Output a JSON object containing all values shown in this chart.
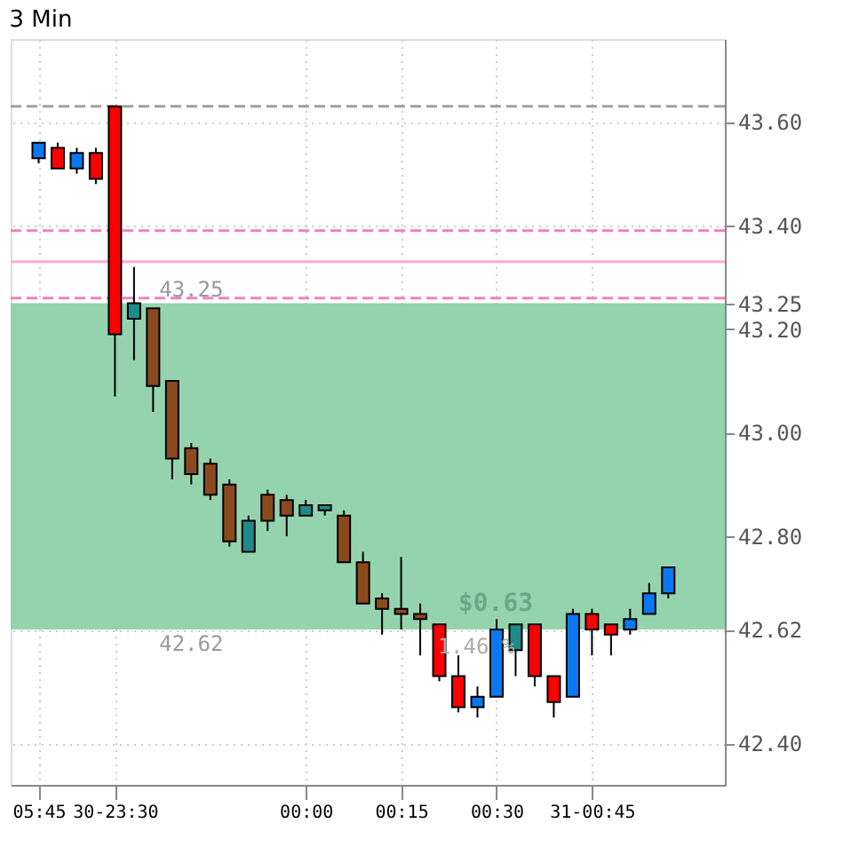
{
  "chart_data": {
    "type": "candlestick",
    "title": "3 Min",
    "categories": [
      "05:45",
      null,
      null,
      null,
      "30-23:30",
      null,
      null,
      null,
      null,
      null,
      null,
      null,
      null,
      null,
      "00:00",
      null,
      null,
      null,
      null,
      "00:15",
      null,
      null,
      null,
      null,
      "00:30",
      null,
      null,
      null,
      null,
      "31-00:45",
      null,
      null,
      null,
      null
    ],
    "ohlc": [
      [
        43.53,
        43.56,
        43.52,
        43.56
      ],
      [
        43.55,
        43.56,
        43.51,
        43.51
      ],
      [
        43.51,
        43.55,
        43.5,
        43.54
      ],
      [
        43.54,
        43.55,
        43.48,
        43.49
      ],
      [
        43.63,
        43.63,
        43.07,
        43.19
      ],
      [
        43.22,
        43.32,
        43.14,
        43.25
      ],
      [
        43.24,
        43.24,
        43.04,
        43.09
      ],
      [
        43.1,
        43.1,
        42.91,
        42.95
      ],
      [
        42.97,
        42.98,
        42.9,
        42.92
      ],
      [
        42.94,
        42.95,
        42.87,
        42.88
      ],
      [
        42.9,
        42.91,
        42.78,
        42.79
      ],
      [
        42.77,
        42.84,
        42.77,
        42.83
      ],
      [
        42.88,
        42.89,
        42.81,
        42.83
      ],
      [
        42.87,
        42.88,
        42.8,
        42.84
      ],
      [
        42.84,
        42.87,
        42.84,
        42.86
      ],
      [
        42.85,
        42.86,
        42.84,
        42.86
      ],
      [
        42.84,
        42.85,
        42.75,
        42.75
      ],
      [
        42.75,
        42.77,
        42.67,
        42.67
      ],
      [
        42.68,
        42.69,
        42.61,
        42.66
      ],
      [
        42.66,
        42.76,
        42.62,
        42.65
      ],
      [
        42.65,
        42.67,
        42.57,
        42.64
      ],
      [
        42.63,
        42.63,
        42.52,
        42.53
      ],
      [
        42.53,
        42.57,
        42.46,
        42.47
      ],
      [
        42.47,
        42.51,
        42.45,
        42.49
      ],
      [
        42.49,
        42.64,
        42.49,
        42.62
      ],
      [
        42.58,
        42.63,
        42.53,
        42.63
      ],
      [
        42.63,
        42.63,
        42.51,
        42.53
      ],
      [
        42.53,
        42.53,
        42.45,
        42.48
      ],
      [
        42.49,
        42.66,
        42.49,
        42.65
      ],
      [
        42.65,
        42.66,
        42.57,
        42.62
      ],
      [
        42.63,
        42.63,
        42.57,
        42.61
      ],
      [
        42.62,
        42.66,
        42.61,
        42.64
      ],
      [
        42.65,
        42.71,
        42.65,
        42.69
      ],
      [
        42.69,
        42.74,
        42.68,
        42.74
      ]
    ],
    "colors": [
      "#0a78f0",
      "#ff0000",
      "#0a78f0",
      "#ff0000",
      "#ff0000",
      "#1f8a8a",
      "#8b4a1e",
      "#8b4a1e",
      "#8b4a1e",
      "#8b4a1e",
      "#8b4a1e",
      "#1f8a8a",
      "#8b4a1e",
      "#8b4a1e",
      "#1f8a8a",
      "#1f8a8a",
      "#8b4a1e",
      "#8b4a1e",
      "#8b4a1e",
      "#8b4a1e",
      "#8b4a1e",
      "#ff0000",
      "#ff0000",
      "#0a78f0",
      "#0a78f0",
      "#1f8a8a",
      "#ff0000",
      "#ff0000",
      "#0a78f0",
      "#ff0000",
      "#ff0000",
      "#0a78f0",
      "#0a78f0",
      "#0a78f0"
    ],
    "ylim": [
      42.32,
      43.76
    ],
    "yticks": [
      {
        "value": 42.4,
        "label": "42.40"
      },
      42.62,
      {
        "value": 42.8,
        "label": "42.80"
      },
      {
        "value": 43.0,
        "label": "43.00"
      },
      {
        "value": 43.2,
        "label": "43.20"
      },
      43.25,
      {
        "value": 43.4,
        "label": "43.40"
      },
      {
        "value": 43.6,
        "label": "43.60"
      }
    ],
    "grid": true,
    "ref_lines": [
      {
        "axis": "y",
        "value": 43.63,
        "color": "#a0a0a0",
        "line_style": "dashed"
      },
      {
        "axis": "y",
        "value": 43.39,
        "color": "#f080c0",
        "line_style": "dashed"
      },
      {
        "axis": "y",
        "value": 43.33,
        "color": "#ffa8d8",
        "line_style": "solid"
      },
      {
        "axis": "y",
        "value": 43.26,
        "color": "#f080c0",
        "line_style": "dashed"
      }
    ],
    "bands": [
      {
        "axis": "y",
        "from": 42.62,
        "to": 43.25,
        "color": "#8fd1aa"
      }
    ],
    "annotations": [
      {
        "text": "43.25",
        "y": 43.25
      },
      {
        "text": "42.62",
        "y": 42.62
      },
      "$0.63",
      "1.46 %"
    ]
  }
}
